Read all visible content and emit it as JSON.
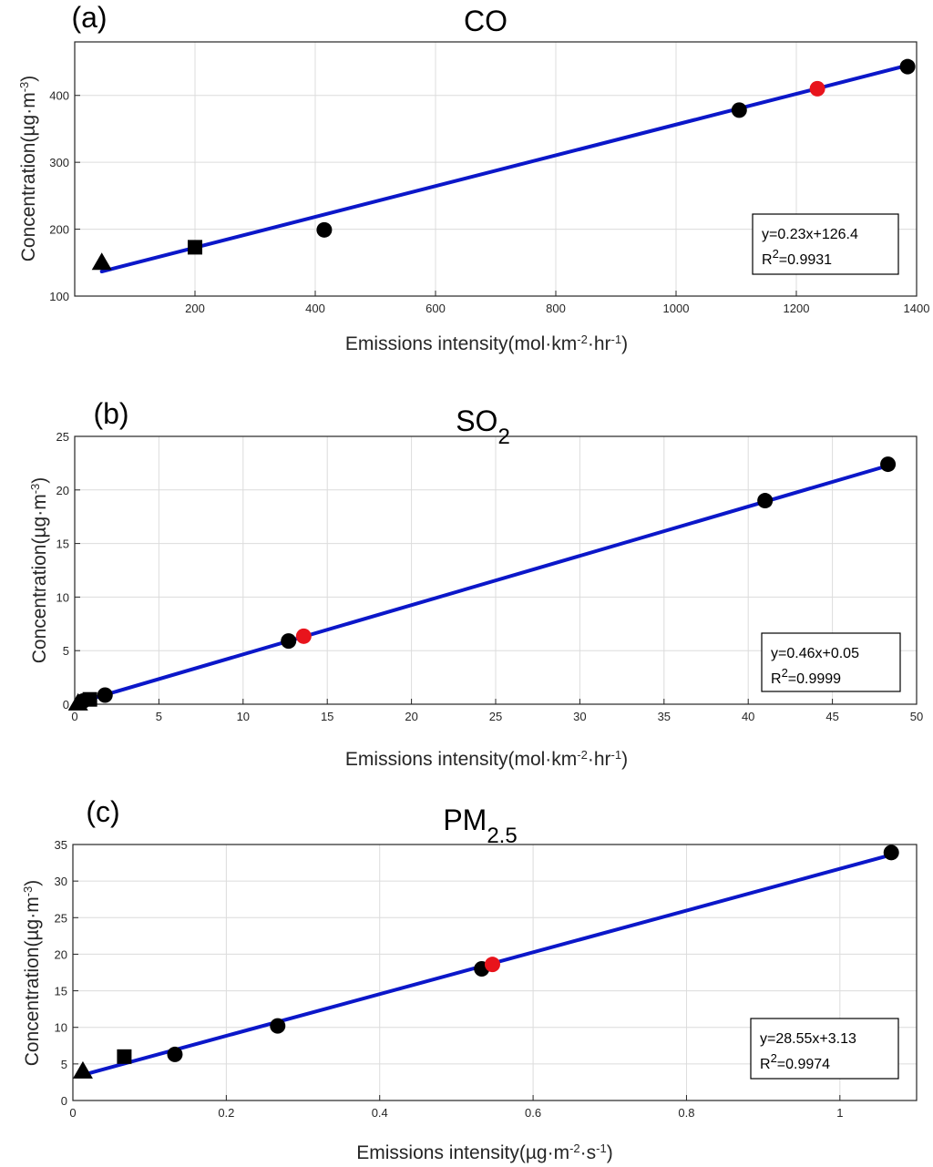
{
  "colors": {
    "fit_line": "#0b17c9",
    "marker_black": "#000000",
    "marker_highlight": "#e8141c",
    "grid": "#dcdcdc",
    "axis": "#262626"
  },
  "chart_data": [
    {
      "type": "scatter",
      "panel_label": "(a)",
      "title": {
        "text": "CO",
        "sub": ""
      },
      "xlabel": {
        "pre": "Emissions intensity(mol·km",
        "sup1": "-2",
        "mid": "·hr",
        "sup2": "-1",
        "post": ")"
      },
      "ylabel": {
        "pre": "Concentration(µg·m",
        "sup1": "-3",
        "mid": "",
        "sup2": "",
        "post": ")"
      },
      "xlim": [
        0,
        1400
      ],
      "ylim": [
        100,
        480
      ],
      "xticks": [
        200,
        400,
        600,
        800,
        1000,
        1200,
        1400
      ],
      "xtick_labels": [
        "200",
        "400",
        "600",
        "800",
        "1000",
        "1200",
        "1400"
      ],
      "yticks": [
        100,
        200,
        300,
        400
      ],
      "ytick_labels": [
        "100",
        "200",
        "300",
        "400"
      ],
      "points": [
        {
          "x": 45,
          "y": 150,
          "marker": "triangle",
          "color": "black"
        },
        {
          "x": 200,
          "y": 173,
          "marker": "square",
          "color": "black"
        },
        {
          "x": 415,
          "y": 199,
          "marker": "circle",
          "color": "black"
        },
        {
          "x": 1105,
          "y": 378,
          "marker": "circle",
          "color": "black"
        },
        {
          "x": 1235,
          "y": 410,
          "marker": "circle",
          "color": "red"
        },
        {
          "x": 1385,
          "y": 443,
          "marker": "circle",
          "color": "black"
        }
      ],
      "fit": {
        "slope": 0.23,
        "intercept": 126.4,
        "x_range": [
          45,
          1385
        ]
      },
      "equation": "y=0.23x+126.4",
      "r2": {
        "pre": "R",
        "sup": "2",
        "post": "=0.9931"
      }
    },
    {
      "type": "scatter",
      "panel_label": "(b)",
      "title": {
        "text": "SO",
        "sub": "2"
      },
      "xlabel": {
        "pre": "Emissions intensity(mol·km",
        "sup1": "-2",
        "mid": "·hr",
        "sup2": "-1",
        "post": ")"
      },
      "ylabel": {
        "pre": "Concentration(µg·m",
        "sup1": "-3",
        "mid": "",
        "sup2": "",
        "post": ")"
      },
      "xlim": [
        0,
        50
      ],
      "ylim": [
        0,
        25
      ],
      "xticks": [
        0,
        5,
        10,
        15,
        20,
        25,
        30,
        35,
        40,
        45,
        50
      ],
      "xtick_labels": [
        "0",
        "5",
        "10",
        "15",
        "20",
        "25",
        "30",
        "35",
        "40",
        "45",
        "50"
      ],
      "yticks": [
        0,
        5,
        10,
        15,
        20,
        25
      ],
      "ytick_labels": [
        "0",
        "5",
        "10",
        "15",
        "20",
        "25"
      ],
      "points": [
        {
          "x": 0.2,
          "y": 0.1,
          "marker": "triangle",
          "color": "black"
        },
        {
          "x": 0.5,
          "y": 0.3,
          "marker": "circle",
          "color": "black"
        },
        {
          "x": 0.9,
          "y": 0.45,
          "marker": "square",
          "color": "black"
        },
        {
          "x": 1.8,
          "y": 0.85,
          "marker": "circle",
          "color": "black"
        },
        {
          "x": 12.7,
          "y": 5.9,
          "marker": "circle",
          "color": "black"
        },
        {
          "x": 13.6,
          "y": 6.35,
          "marker": "circle",
          "color": "red"
        },
        {
          "x": 41.0,
          "y": 19.0,
          "marker": "circle",
          "color": "black"
        },
        {
          "x": 48.3,
          "y": 22.4,
          "marker": "circle",
          "color": "black"
        }
      ],
      "fit": {
        "slope": 0.46,
        "intercept": 0.05,
        "x_range": [
          0,
          48.3
        ]
      },
      "equation": "y=0.46x+0.05",
      "r2": {
        "pre": "R",
        "sup": "2",
        "post": "=0.9999"
      }
    },
    {
      "type": "scatter",
      "panel_label": "(c)",
      "title": {
        "text": "PM",
        "sub": "2.5"
      },
      "xlabel": {
        "pre": "Emissions intensity(µg·m",
        "sup1": "-2",
        "mid": "·s",
        "sup2": "-1",
        "post": ")"
      },
      "ylabel": {
        "pre": "Concentration(µg·m",
        "sup1": "-3",
        "mid": "",
        "sup2": "",
        "post": ")"
      },
      "xlim": [
        0,
        1.1
      ],
      "ylim": [
        0,
        35
      ],
      "xticks": [
        0,
        0.2,
        0.4,
        0.6,
        0.8,
        1.0
      ],
      "xtick_labels": [
        "0",
        "0.2",
        "0.4",
        "0.6",
        "0.8",
        "1"
      ],
      "yticks": [
        0,
        5,
        10,
        15,
        20,
        25,
        30,
        35
      ],
      "ytick_labels": [
        "0",
        "5",
        "10",
        "15",
        "20",
        "25",
        "30",
        "35"
      ],
      "points": [
        {
          "x": 0.013,
          "y": 4.0,
          "marker": "triangle",
          "color": "black"
        },
        {
          "x": 0.067,
          "y": 6.0,
          "marker": "square",
          "color": "black"
        },
        {
          "x": 0.133,
          "y": 6.3,
          "marker": "circle",
          "color": "black"
        },
        {
          "x": 0.267,
          "y": 10.2,
          "marker": "circle",
          "color": "black"
        },
        {
          "x": 0.533,
          "y": 18.0,
          "marker": "circle",
          "color": "black"
        },
        {
          "x": 0.547,
          "y": 18.6,
          "marker": "circle",
          "color": "red"
        },
        {
          "x": 1.067,
          "y": 33.9,
          "marker": "circle",
          "color": "black"
        }
      ],
      "fit": {
        "slope": 28.55,
        "intercept": 3.13,
        "x_range": [
          0.013,
          1.067
        ]
      },
      "equation": "y=28.55x+3.13",
      "r2": {
        "pre": "R",
        "sup": "2",
        "post": "=0.9974"
      }
    }
  ]
}
